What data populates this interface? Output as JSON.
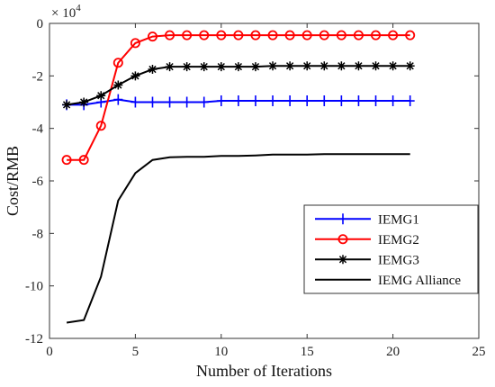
{
  "chart_data": {
    "type": "line",
    "xlabel": "Number of Iterations",
    "ylabel": "Cost/RMB",
    "xlim": [
      0,
      25
    ],
    "ylim": [
      -12,
      0
    ],
    "xticks": [
      0,
      5,
      10,
      15,
      20,
      25
    ],
    "yticks": [
      0,
      -2,
      -4,
      -6,
      -8,
      -10,
      -12
    ],
    "y_exponent_label": "× 10",
    "y_exponent_power": "4",
    "grid": false,
    "legend_position": "bottom-right",
    "x": [
      1,
      2,
      3,
      4,
      5,
      6,
      7,
      8,
      9,
      10,
      11,
      12,
      13,
      14,
      15,
      16,
      17,
      18,
      19,
      20,
      21
    ],
    "series": [
      {
        "name": "IEMG1",
        "color": "#0000ff",
        "marker": "plus",
        "values": [
          -3.1,
          -3.1,
          -3.0,
          -2.9,
          -3.0,
          -3.0,
          -3.0,
          -3.0,
          -3.0,
          -2.95,
          -2.95,
          -2.95,
          -2.95,
          -2.95,
          -2.95,
          -2.95,
          -2.95,
          -2.95,
          -2.95,
          -2.95,
          -2.95
        ]
      },
      {
        "name": "IEMG2",
        "color": "#ff0000",
        "marker": "circle",
        "values": [
          -5.2,
          -5.2,
          -3.9,
          -1.5,
          -0.75,
          -0.5,
          -0.45,
          -0.45,
          -0.45,
          -0.45,
          -0.45,
          -0.45,
          -0.45,
          -0.45,
          -0.45,
          -0.45,
          -0.45,
          -0.45,
          -0.45,
          -0.45,
          -0.45
        ]
      },
      {
        "name": "IEMG3",
        "color": "#000000",
        "marker": "star",
        "values": [
          -3.1,
          -3.0,
          -2.75,
          -2.35,
          -2.0,
          -1.75,
          -1.65,
          -1.65,
          -1.65,
          -1.65,
          -1.65,
          -1.65,
          -1.62,
          -1.62,
          -1.62,
          -1.62,
          -1.62,
          -1.62,
          -1.62,
          -1.62,
          -1.62
        ]
      },
      {
        "name": "IEMG Alliance",
        "color": "#000000",
        "marker": "none",
        "values": [
          -11.4,
          -11.3,
          -9.65,
          -6.75,
          -5.7,
          -5.2,
          -5.1,
          -5.08,
          -5.08,
          -5.05,
          -5.05,
          -5.03,
          -5.0,
          -5.0,
          -5.0,
          -4.98,
          -4.98,
          -4.98,
          -4.98,
          -4.98,
          -4.98
        ]
      }
    ]
  }
}
